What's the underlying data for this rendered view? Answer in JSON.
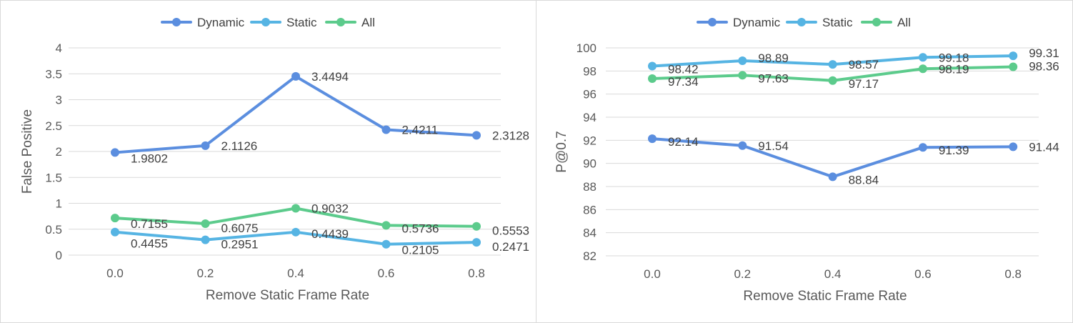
{
  "chart_data": [
    {
      "type": "line",
      "title": "",
      "xlabel": "Remove Static Frame Rate",
      "ylabel": "False Positive",
      "categories": [
        "0.0",
        "0.2",
        "0.4",
        "0.6",
        "0.8"
      ],
      "yticks": [
        "0",
        "0.5",
        "1",
        "1.5",
        "2",
        "2.5",
        "3",
        "3.5",
        "4"
      ],
      "ylim": [
        0,
        4
      ],
      "grid": true,
      "legend_position": "top",
      "series": [
        {
          "name": "Dynamic",
          "color": "#5B8EDF",
          "values": [
            1.9802,
            2.1126,
            3.4494,
            2.4211,
            2.3128
          ],
          "labels": [
            "1.9802",
            "2.1126",
            "3.4494",
            "2.4211",
            "2.3128"
          ]
        },
        {
          "name": "Static",
          "color": "#56B4E3",
          "values": [
            0.4455,
            0.2951,
            0.4439,
            0.2105,
            0.2471
          ],
          "labels": [
            "0.4455",
            "0.2951",
            "0.4439",
            "0.2105",
            "0.2471"
          ]
        },
        {
          "name": "All",
          "color": "#5CCB8C",
          "values": [
            0.7155,
            0.6075,
            0.9032,
            0.5736,
            0.5553
          ],
          "labels": [
            "0.7155",
            "0.6075",
            "0.9032",
            "0.5736",
            "0.5553"
          ]
        }
      ]
    },
    {
      "type": "line",
      "title": "",
      "xlabel": "Remove Static Frame Rate",
      "ylabel": "P@0.7",
      "categories": [
        "0.0",
        "0.2",
        "0.4",
        "0.6",
        "0.8"
      ],
      "yticks": [
        "82",
        "84",
        "86",
        "88",
        "90",
        "92",
        "94",
        "96",
        "98",
        "100"
      ],
      "ylim": [
        82,
        100
      ],
      "grid": true,
      "legend_position": "top",
      "series": [
        {
          "name": "Dynamic",
          "color": "#5B8EDF",
          "values": [
            92.14,
            91.54,
            88.84,
            91.39,
            91.44
          ],
          "labels": [
            "92.14",
            "91.54",
            "88.84",
            "91.39",
            "91.44"
          ]
        },
        {
          "name": "Static",
          "color": "#56B4E3",
          "values": [
            98.42,
            98.89,
            98.57,
            99.18,
            99.31
          ],
          "labels": [
            "98.42",
            "98.89",
            "98.57",
            "99.18",
            "99.31"
          ]
        },
        {
          "name": "All",
          "color": "#5CCB8C",
          "values": [
            97.34,
            97.63,
            97.17,
            98.19,
            98.36
          ],
          "labels": [
            "97.34",
            "97.63",
            "97.17",
            "98.19",
            "98.36"
          ]
        }
      ]
    }
  ]
}
